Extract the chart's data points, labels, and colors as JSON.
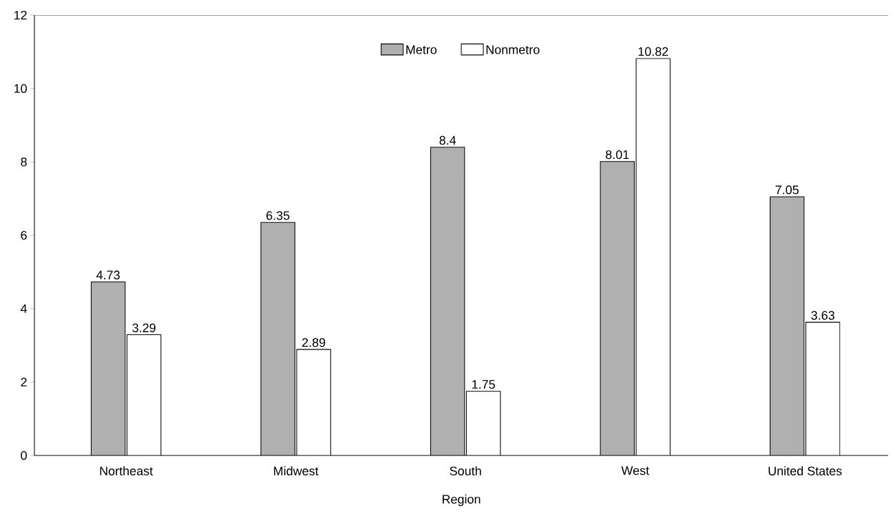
{
  "chart_data": {
    "type": "bar",
    "xlabel": "Region",
    "categories": [
      "Northeast",
      "Midwest",
      "South",
      "West",
      "United States"
    ],
    "series": [
      {
        "name": "Metro",
        "color": "#b0b0b0",
        "values": [
          4.73,
          6.35,
          8.4,
          8.01,
          7.05
        ]
      },
      {
        "name": "Nonmetro",
        "color": "#ffffff",
        "values": [
          3.29,
          2.89,
          1.75,
          10.82,
          3.63
        ]
      }
    ],
    "ylim": [
      0,
      12
    ],
    "yticks": [
      0,
      2,
      4,
      6,
      8,
      10,
      12
    ],
    "data_labels": true,
    "grid": false,
    "legend": "top"
  }
}
